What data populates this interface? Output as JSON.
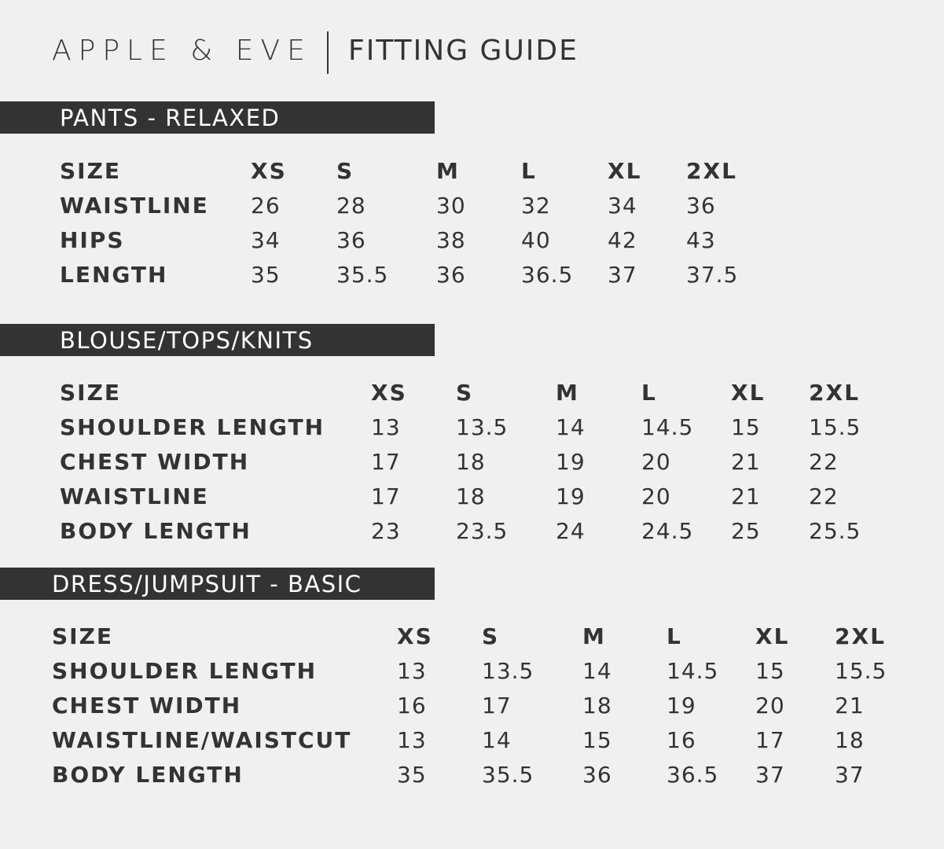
{
  "header": {
    "brand": "APPLE & EVE",
    "title": "FITTING GUIDE"
  },
  "sections": [
    {
      "title": "PANTS - RELAXED",
      "rows": [
        [
          "SIZE",
          "XS",
          "S",
          "M",
          "L",
          "XL",
          "2XL"
        ],
        [
          "WAISTLINE",
          "26",
          "28",
          "30",
          "32",
          "34",
          "36"
        ],
        [
          "HIPS",
          "34",
          "36",
          "38",
          "40",
          "42",
          "43"
        ],
        [
          "LENGTH",
          "35",
          "35.5",
          "36",
          "36.5",
          "37",
          "37.5"
        ]
      ]
    },
    {
      "title": "BLOUSE/TOPS/KNITS",
      "rows": [
        [
          "SIZE",
          "XS",
          "S",
          "M",
          "L",
          "XL",
          "2XL"
        ],
        [
          "SHOULDER LENGTH",
          "13",
          "13.5",
          "14",
          "14.5",
          "15",
          "15.5"
        ],
        [
          "CHEST WIDTH",
          "17",
          "18",
          "19",
          "20",
          "21",
          "22"
        ],
        [
          "WAISTLINE",
          "17",
          "18",
          "19",
          "20",
          "21",
          "22"
        ],
        [
          "BODY LENGTH",
          "23",
          "23.5",
          "24",
          "24.5",
          "25",
          "25.5"
        ]
      ]
    },
    {
      "title": "DRESS/JUMPSUIT - BASIC",
      "rows": [
        [
          "SIZE",
          "XS",
          "S",
          "M",
          "L",
          "XL",
          "2XL"
        ],
        [
          "SHOULDER LENGTH",
          "13",
          "13.5",
          "14",
          "14.5",
          "15",
          "15.5"
        ],
        [
          "CHEST WIDTH",
          "16",
          "17",
          "18",
          "19",
          "20",
          "21"
        ],
        [
          "WAISTLINE/WAISTCUT",
          "13",
          "14",
          "15",
          "16",
          "17",
          "18"
        ],
        [
          "BODY LENGTH",
          "35",
          "35.5",
          "36",
          "36.5",
          "37",
          "37"
        ]
      ]
    }
  ]
}
